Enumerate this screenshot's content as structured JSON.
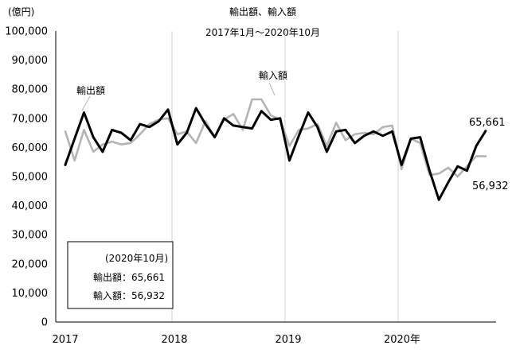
{
  "chart_data": {
    "type": "line",
    "title": "輸出額、輸入額",
    "subtitle": "2017年1月～2020年10月",
    "unit_label": "(億円)",
    "ylim": [
      0,
      100000
    ],
    "y_ticks": [
      "0",
      "10,000",
      "20,000",
      "30,000",
      "40,000",
      "50,000",
      "60,000",
      "70,000",
      "80,000",
      "90,000",
      "100,000"
    ],
    "x_tick_labels": [
      "2017",
      "2018",
      "2019",
      "2020年"
    ],
    "year_lines": [
      "2018",
      "2019",
      "2020年"
    ],
    "grid": false,
    "series": [
      {
        "name": "輸出額",
        "color": "#000000",
        "values": [
          54000,
          63000,
          72000,
          63500,
          58500,
          66000,
          65000,
          62500,
          68000,
          67000,
          69000,
          73000,
          61000,
          65000,
          73500,
          68000,
          63500,
          70000,
          67500,
          67000,
          66500,
          72500,
          69500,
          70000,
          55500,
          64000,
          72000,
          67000,
          58500,
          65500,
          66000,
          61500,
          64000,
          65500,
          64000,
          65500,
          54000,
          63000,
          63500,
          52000,
          42000,
          48000,
          53500,
          52000,
          60500,
          65661
        ]
      },
      {
        "name": "輸入額",
        "color": "#b4b4b4",
        "values": [
          65500,
          55500,
          66000,
          58500,
          61000,
          62000,
          61000,
          61500,
          64500,
          68000,
          69500,
          70000,
          64500,
          65500,
          61500,
          69000,
          63500,
          69500,
          71500,
          66000,
          76500,
          76500,
          71000,
          69500,
          60500,
          66000,
          66500,
          68000,
          60500,
          68500,
          62500,
          64500,
          65000,
          64500,
          67000,
          67500,
          52500,
          63000,
          61500,
          50500,
          51000,
          53000,
          50000,
          53500,
          57000,
          56932
        ]
      }
    ],
    "annotations": {
      "export_label": "輸出額",
      "import_label": "輸入額",
      "export_last": "65,661",
      "import_last": "56,932"
    },
    "info_box": {
      "heading": "(2020年10月)",
      "export_line": "輸出額：65,661",
      "import_line": "輸入額：56,932"
    }
  }
}
